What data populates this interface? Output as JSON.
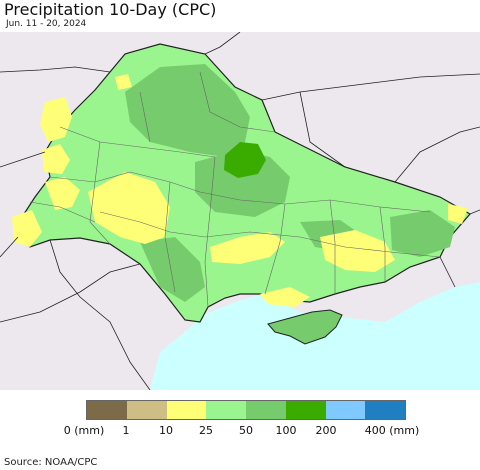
{
  "header": {
    "title": "Precipitation 10-Day (CPC)",
    "subtitle": "Jun. 11 - 20, 2024"
  },
  "legend": {
    "colors": [
      "#7d6a48",
      "#cfbd86",
      "#ffff77",
      "#9bf58e",
      "#76cc6d",
      "#3aac00",
      "#7fc9ff",
      "#1f7fc0"
    ],
    "labels": [
      "0 (mm)",
      "1",
      "10",
      "25",
      "50",
      "100",
      "200",
      "400 (mm)"
    ]
  },
  "map": {
    "sea_color": "#ccffff",
    "outside_color": "#ece8ee",
    "border_color": "#222222",
    "oblast_line_color": "#666666"
  },
  "footer": {
    "source": "Source: NOAA/CPC"
  }
}
